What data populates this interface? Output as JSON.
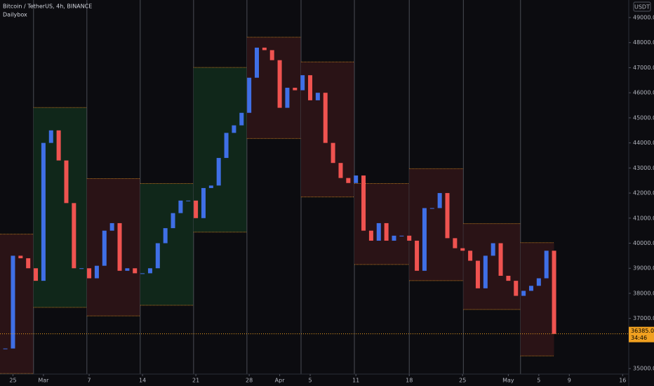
{
  "chart_data": {
    "type": "candlestick",
    "title": "Bitcoin / TetherUS, 4h, BINANCE",
    "subtitle": "Dailybox",
    "currency": "USDT",
    "countdown": "34:46",
    "last_price": {
      "value": 36385,
      "label": "36385.00"
    },
    "up_color": "#3f6fe6",
    "down_color": "#ef5350",
    "line_color": "#f0a020",
    "xlim": [
      -1.7,
      80.8
    ],
    "ylim": [
      34780,
      49700
    ],
    "xticks": [
      {
        "value": 0,
        "label": "25"
      },
      {
        "value": 4,
        "label": "Mar"
      },
      {
        "value": 10,
        "label": "7"
      },
      {
        "value": 17,
        "label": "14"
      },
      {
        "value": 24,
        "label": "21"
      },
      {
        "value": 31,
        "label": "28"
      },
      {
        "value": 35,
        "label": "Apr"
      },
      {
        "value": 39,
        "label": "5"
      },
      {
        "value": 45,
        "label": "11"
      },
      {
        "value": 52,
        "label": "18"
      },
      {
        "value": 59,
        "label": "25"
      },
      {
        "value": 65,
        "label": "May"
      },
      {
        "value": 69,
        "label": "5"
      },
      {
        "value": 73,
        "label": "9"
      },
      {
        "value": 80,
        "label": "16"
      }
    ],
    "yticks": [
      {
        "value": 35000,
        "label": "35000.00"
      },
      {
        "value": 37000,
        "label": "37000.00"
      },
      {
        "value": 38000,
        "label": "38000.00"
      },
      {
        "value": 39000,
        "label": "39000.00"
      },
      {
        "value": 40000,
        "label": "40000.00"
      },
      {
        "value": 41000,
        "label": "41000.00"
      },
      {
        "value": 42000,
        "label": "42000.00"
      },
      {
        "value": 43000,
        "label": "43000.00"
      },
      {
        "value": 44000,
        "label": "44000.00"
      },
      {
        "value": 45000,
        "label": "45000.00"
      },
      {
        "value": 46000,
        "label": "46000.00"
      },
      {
        "value": 47000,
        "label": "47000.00"
      },
      {
        "value": 48000,
        "label": "48000.00"
      },
      {
        "value": 49000,
        "label": "49000.00"
      }
    ],
    "boxes": [
      {
        "start": -1.7,
        "end": 2.7,
        "high": 40360,
        "low": 34800,
        "color": "#2a1316"
      },
      {
        "start": 2.7,
        "end": 9.7,
        "high": 45410,
        "low": 37440,
        "color": "#10271a"
      },
      {
        "start": 9.7,
        "end": 16.7,
        "high": 42575,
        "low": 37100,
        "color": "#2a1316"
      },
      {
        "start": 16.7,
        "end": 23.7,
        "high": 42380,
        "low": 37525,
        "color": "#10271a"
      },
      {
        "start": 23.7,
        "end": 30.7,
        "high": 47010,
        "low": 40440,
        "color": "#10271a"
      },
      {
        "start": 30.7,
        "end": 37.8,
        "high": 48215,
        "low": 44175,
        "color": "#2a1316"
      },
      {
        "start": 37.8,
        "end": 44.8,
        "high": 47230,
        "low": 41845,
        "color": "#2a1316"
      },
      {
        "start": 44.8,
        "end": 52.0,
        "high": 42380,
        "low": 39150,
        "color": "#2a1316"
      },
      {
        "start": 52.0,
        "end": 59.1,
        "high": 42970,
        "low": 38505,
        "color": "#2a1316"
      },
      {
        "start": 59.1,
        "end": 66.6,
        "high": 40780,
        "low": 37355,
        "color": "#2a1316"
      },
      {
        "start": 66.6,
        "end": 71.0,
        "high": 40020,
        "low": 35505,
        "color": "#2a1316"
      }
    ],
    "series": [
      {
        "name": "BTCUSDT",
        "x": [
          -1,
          0,
          1,
          2,
          3,
          4,
          5,
          6,
          7,
          8,
          9,
          10,
          11,
          12,
          13,
          14,
          15,
          16,
          17,
          18,
          19,
          20,
          21,
          22,
          23,
          24,
          25,
          26,
          27,
          28,
          29,
          30,
          31,
          32,
          33,
          34,
          35,
          36,
          37,
          38,
          39,
          40,
          41,
          42,
          43,
          44,
          45,
          46,
          47,
          48,
          49,
          50,
          51,
          52,
          53,
          54,
          55,
          56,
          57,
          58,
          59,
          60,
          61,
          62,
          63,
          64,
          65,
          66,
          67,
          68,
          69,
          70,
          71
        ],
        "values": [
          35800,
          39500,
          39400,
          39000,
          38500,
          44000,
          44500,
          43300,
          41600,
          39000,
          39000,
          38600,
          39100,
          40500,
          40800,
          38900,
          39000,
          38800,
          38800,
          39000,
          40000,
          40600,
          41200,
          41700,
          41700,
          41000,
          42200,
          42300,
          43400,
          44400,
          44700,
          45200,
          46600,
          47800,
          47700,
          47300,
          45400,
          46200,
          46100,
          46700,
          45700,
          46000,
          44000,
          43200,
          42600,
          42400,
          42700,
          40500,
          40100,
          40800,
          40100,
          40300,
          40300,
          40100,
          38900,
          41400,
          41400,
          42000,
          40200,
          39800,
          39700,
          39300,
          38200,
          39500,
          40000,
          38700,
          38500,
          37900,
          38100,
          38300,
          38600,
          39700,
          36385
        ]
      }
    ]
  }
}
